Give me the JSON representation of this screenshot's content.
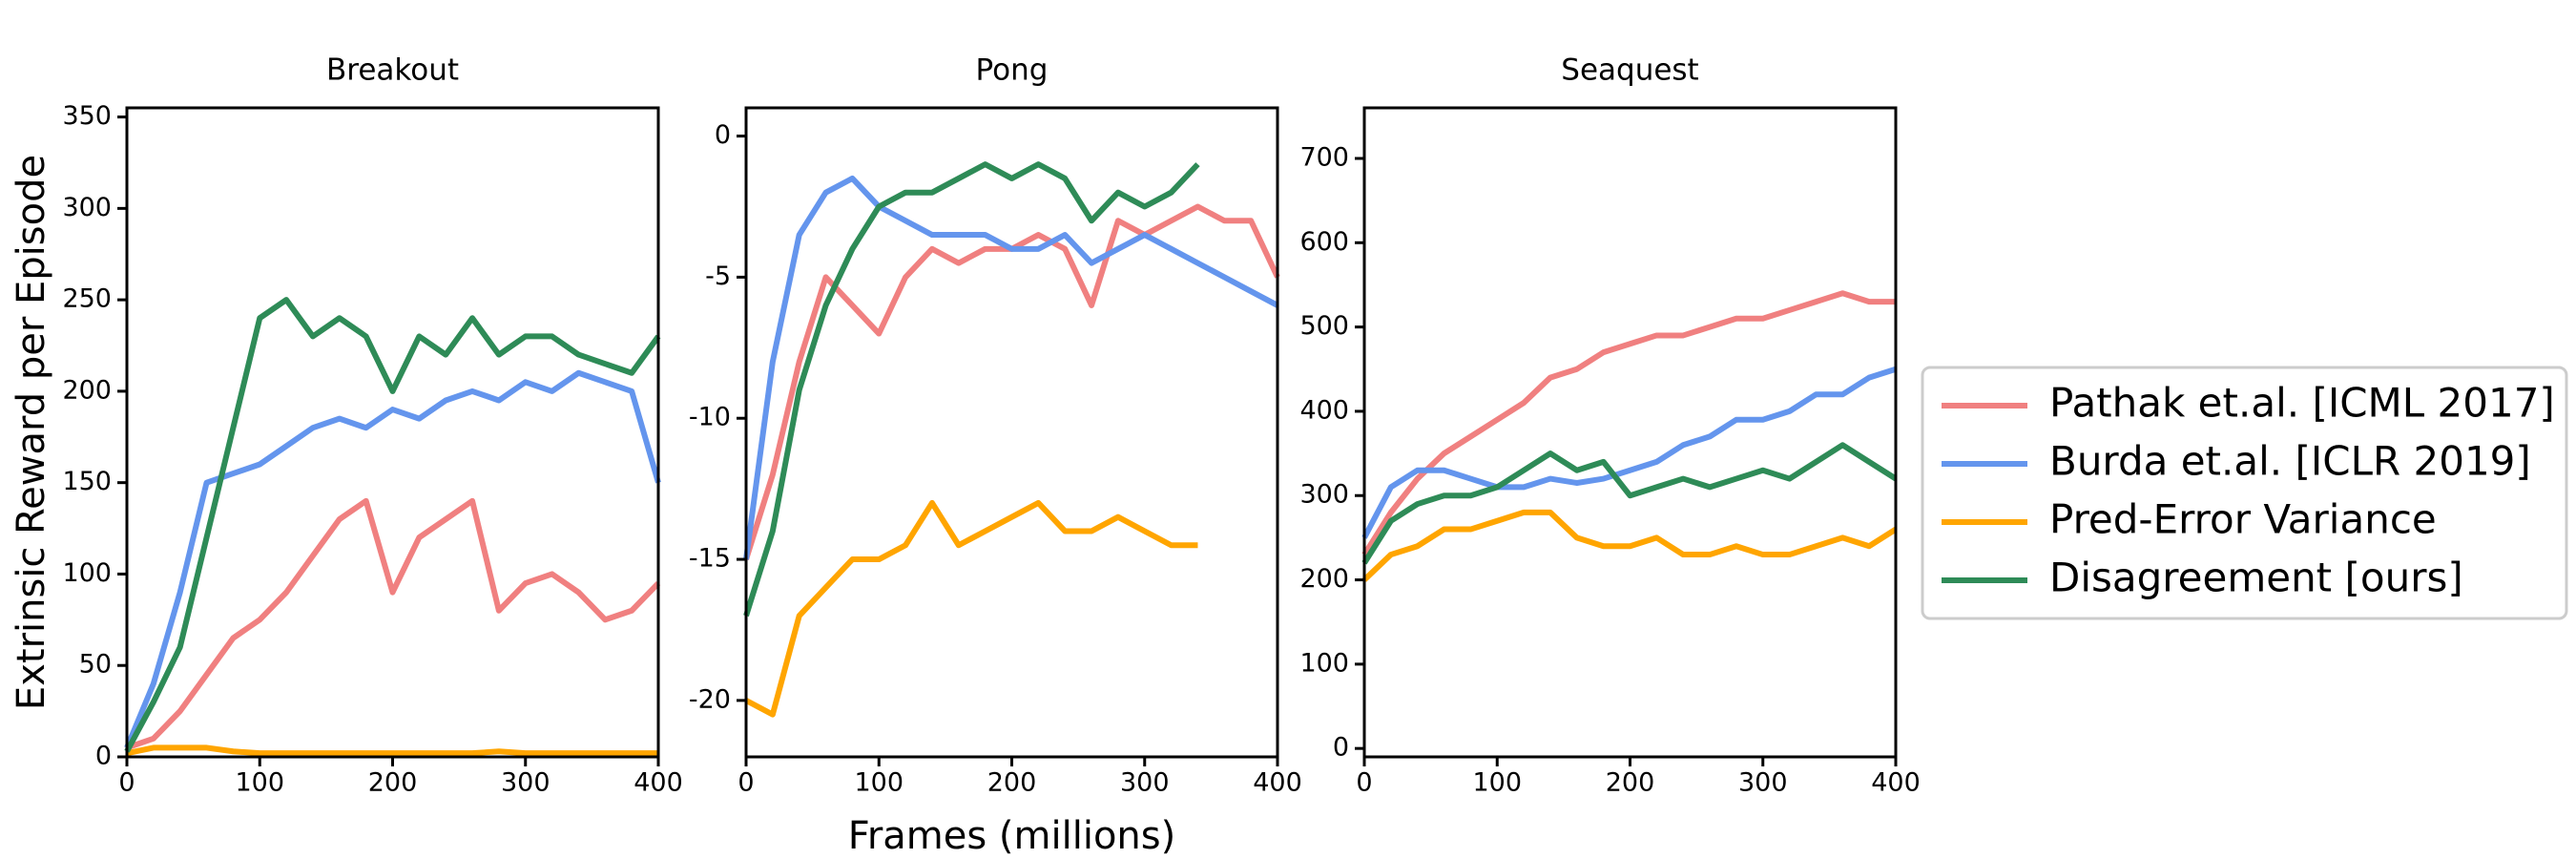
{
  "chart_data": [
    {
      "type": "line",
      "title": "Breakout",
      "ylabel": "Extrinsic Reward per Episode",
      "x": [
        0,
        20,
        40,
        60,
        80,
        100,
        120,
        140,
        160,
        180,
        200,
        220,
        240,
        260,
        280,
        300,
        320,
        340,
        360,
        380,
        400
      ],
      "xlim": [
        0,
        400
      ],
      "xticks": [
        0,
        100,
        200,
        300,
        400
      ],
      "ylim": [
        0,
        355
      ],
      "yticks": [
        0,
        50,
        100,
        150,
        200,
        250,
        300,
        350
      ],
      "series": [
        {
          "name": "Pathak et.al. [ICML 2017]",
          "color": "#f08080",
          "values": [
            5,
            10,
            25,
            45,
            65,
            75,
            90,
            110,
            130,
            140,
            90,
            120,
            130,
            140,
            80,
            95,
            100,
            90,
            75,
            80,
            95
          ]
        },
        {
          "name": "Burda et.al. [ICLR 2019]",
          "color": "#6495ed",
          "values": [
            5,
            40,
            90,
            150,
            155,
            160,
            170,
            180,
            185,
            180,
            190,
            185,
            195,
            200,
            195,
            205,
            200,
            210,
            205,
            200,
            150
          ]
        },
        {
          "name": "Pred-Error Variance",
          "color": "#ffa500",
          "values": [
            2,
            5,
            5,
            5,
            3,
            2,
            2,
            2,
            2,
            2,
            2,
            2,
            2,
            2,
            3,
            2,
            2,
            2,
            2,
            2,
            2
          ]
        },
        {
          "name": "Disagreement [ours]",
          "color": "#2e8b57",
          "values": [
            3,
            30,
            60,
            120,
            180,
            240,
            250,
            230,
            240,
            230,
            200,
            230,
            220,
            240,
            220,
            230,
            230,
            220,
            215,
            210,
            230
          ]
        }
      ]
    },
    {
      "type": "line",
      "title": "Pong",
      "xlabel": "Frames (millions)",
      "x": [
        0,
        20,
        40,
        60,
        80,
        100,
        120,
        140,
        160,
        180,
        200,
        220,
        240,
        260,
        280,
        300,
        320,
        340,
        360,
        380,
        400
      ],
      "xlim": [
        0,
        400
      ],
      "xticks": [
        0,
        100,
        200,
        300,
        400
      ],
      "ylim": [
        -22,
        1
      ],
      "yticks": [
        0,
        -5,
        -10,
        -15,
        -20
      ],
      "series": [
        {
          "color": "#f08080",
          "values": [
            -15,
            -12,
            -8,
            -5,
            -6,
            -7,
            -5,
            -4,
            -4.5,
            -4,
            -4,
            -3.5,
            -4,
            -6,
            -3,
            -3.5,
            -3,
            -2.5,
            -3,
            -3,
            -5
          ]
        },
        {
          "color": "#6495ed",
          "values": [
            -15,
            -8,
            -3.5,
            -2,
            -1.5,
            -2.5,
            -3,
            -3.5,
            -3.5,
            -3.5,
            -4,
            -4,
            -3.5,
            -4.5,
            -4,
            -3.5,
            -4,
            -4.5,
            -5,
            -5.5,
            -6
          ]
        },
        {
          "color": "#ffa500",
          "values": [
            -20,
            -20.5,
            -17,
            -16,
            -15,
            -15,
            -14.5,
            -13,
            -14.5,
            -14,
            -13.5,
            -13,
            -14,
            -14,
            -13.5,
            -14,
            -14.5,
            -14.5,
            null,
            null,
            null
          ]
        },
        {
          "color": "#2e8b57",
          "values": [
            -17,
            -14,
            -9,
            -6,
            -4,
            -2.5,
            -2,
            -2,
            -1.5,
            -1,
            -1.5,
            -1,
            -1.5,
            -3,
            -2,
            -2.5,
            -2,
            -1,
            null,
            null,
            null
          ]
        }
      ]
    },
    {
      "type": "line",
      "title": "Seaquest",
      "x": [
        0,
        20,
        40,
        60,
        80,
        100,
        120,
        140,
        160,
        180,
        200,
        220,
        240,
        260,
        280,
        300,
        320,
        340,
        360,
        380,
        400
      ],
      "xlim": [
        0,
        400
      ],
      "xticks": [
        0,
        100,
        200,
        300,
        400
      ],
      "ylim": [
        -10,
        760
      ],
      "yticks": [
        0,
        100,
        200,
        300,
        400,
        500,
        600,
        700
      ],
      "series": [
        {
          "color": "#f08080",
          "values": [
            230,
            280,
            320,
            350,
            370,
            390,
            410,
            440,
            450,
            470,
            480,
            490,
            490,
            500,
            510,
            510,
            520,
            530,
            540,
            530,
            530
          ]
        },
        {
          "color": "#6495ed",
          "values": [
            250,
            310,
            330,
            330,
            320,
            310,
            310,
            320,
            315,
            320,
            330,
            340,
            360,
            370,
            390,
            390,
            400,
            420,
            420,
            440,
            450
          ]
        },
        {
          "color": "#ffa500",
          "values": [
            200,
            230,
            240,
            260,
            260,
            270,
            280,
            280,
            250,
            240,
            240,
            250,
            230,
            230,
            240,
            230,
            230,
            240,
            250,
            240,
            260
          ]
        },
        {
          "color": "#2e8b57",
          "values": [
            220,
            270,
            290,
            300,
            300,
            310,
            330,
            350,
            330,
            340,
            300,
            310,
            320,
            310,
            320,
            330,
            320,
            340,
            360,
            340,
            320
          ]
        }
      ]
    }
  ]
}
